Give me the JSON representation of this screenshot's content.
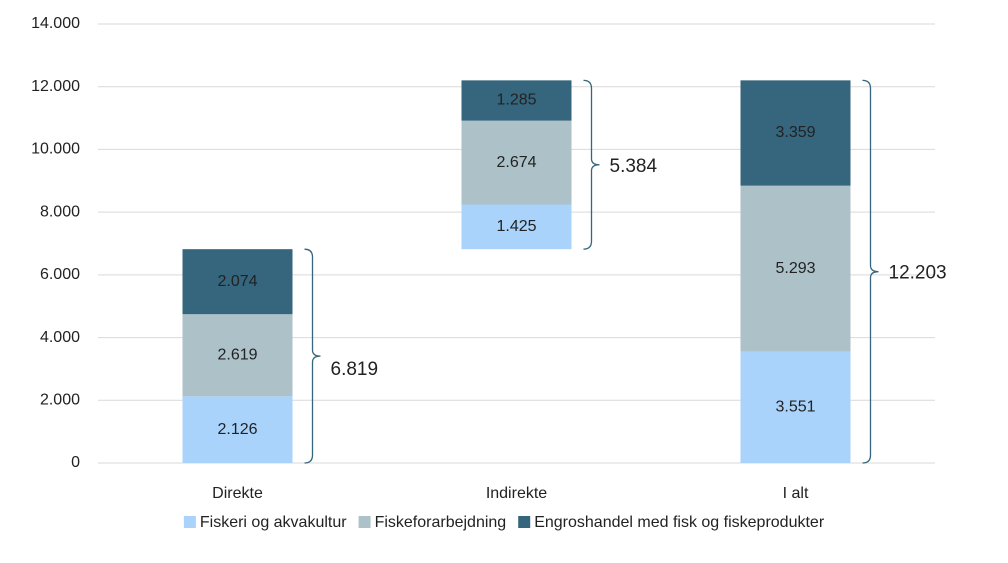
{
  "chart_data": {
    "type": "waterfall",
    "categories": [
      "Direkte",
      "Indirekte",
      "I alt"
    ],
    "series": [
      {
        "name": "Fiskeri og akvakultur",
        "color": "#a9d3fb",
        "values": [
          2126,
          1425,
          3551
        ],
        "value_labels": [
          "2.126",
          "1.425",
          "3.551"
        ]
      },
      {
        "name": "Fiskeforarbejdning",
        "color": "#adc1c9",
        "values": [
          2619,
          2674,
          5293
        ],
        "value_labels": [
          "2.619",
          "2.674",
          "5.293"
        ]
      },
      {
        "name": "Engroshandel med fisk og fiskeprodukter",
        "color": "#35667d",
        "values": [
          2074,
          1285,
          3359
        ],
        "value_labels": [
          "2.074",
          "1.285",
          "3.359"
        ]
      }
    ],
    "totals": [
      6819,
      5384,
      12203
    ],
    "total_labels": [
      "6.819",
      "5.384",
      "12.203"
    ],
    "ylim": [
      0,
      14000
    ],
    "yticks": [
      0,
      {
        "value": 2000,
        "label": "2.000"
      },
      {
        "value": 4000,
        "label": "4.000"
      },
      {
        "value": 6000,
        "label": "6.000"
      },
      {
        "value": 8000,
        "label": "8.000"
      },
      {
        "value": 10000,
        "label": "10.000"
      },
      {
        "value": 12000,
        "label": "12.000"
      },
      {
        "value": 14000,
        "label": "14.000"
      }
    ],
    "grid": true,
    "legend": "bottom"
  }
}
